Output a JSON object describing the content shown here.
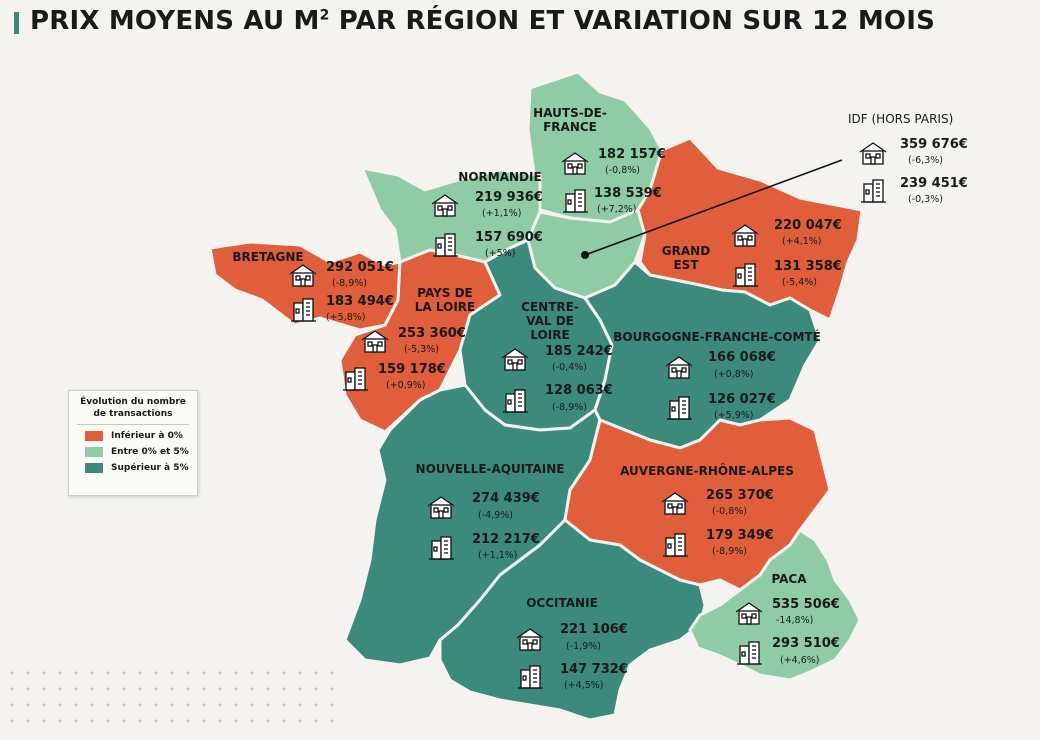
{
  "title_main": "PRIX MOYENS AU M",
  "title_sup": "2",
  "title_rest": " PAR RÉGION ET VARIATION SUR 12 MOIS",
  "colors": {
    "below_0": "#e05e3c",
    "between_0_5": "#8fcba4",
    "above_5": "#3b8a7c"
  },
  "icons": {
    "house": "house-icon",
    "apartment": "apartment-building-icon"
  },
  "legend": {
    "title": "Évolution du nombre de transactions",
    "items": [
      "Inférieur à 0%",
      "Entre 0% et 5%",
      "Supérieur à 5%"
    ]
  },
  "regions": {
    "hdf": {
      "label": "HAUTS-DE-FRANCE",
      "house_price": "182 157€",
      "house_var": "(-0,8%)",
      "apt_price": "138 539€",
      "apt_var": "(+7,2%)",
      "category": "Entre 0% et 5%"
    },
    "norm": {
      "label": "NORMANDIE",
      "house_price": "219 936€",
      "house_var": "(+1,1%)",
      "apt_price": "157 690€",
      "apt_var": "(+5%)",
      "category": "Entre 0% et 5%"
    },
    "idf": {
      "label": "IDF (HORS PARIS)",
      "house_price": "359 676€",
      "house_var": "(-6,3%)",
      "apt_price": "239 451€",
      "apt_var": "(-0,3%)",
      "category": "Entre 0% et 5%"
    },
    "ge": {
      "label": "GRAND EST",
      "house_price": "220 047€",
      "house_var": "(+4,1%)",
      "apt_price": "131 358€",
      "apt_var": "(-5,4%)",
      "category": "Inférieur à 0%"
    },
    "bret": {
      "label": "BRETAGNE",
      "house_price": "292 051€",
      "house_var": "(-8,9%)",
      "apt_price": "183 494€",
      "apt_var": "(+5,8%)",
      "category": "Inférieur à 0%"
    },
    "pdl": {
      "label": "PAYS DE LA LOIRE",
      "house_price": "253 360€",
      "house_var": "(-5,3%)",
      "apt_price": "159 178€",
      "apt_var": "(+0,9%)",
      "category": "Inférieur à 0%"
    },
    "cvl": {
      "label": "CENTRE-VAL DE LOIRE",
      "house_price": "185 242€",
      "house_var": "(-0,4%)",
      "apt_price": "128 063€",
      "apt_var": "(-8,9%)",
      "category": "Supérieur à 5%"
    },
    "bfc": {
      "label": "BOURGOGNE-FRANCHE-COMTÉ",
      "house_price": "166 068€",
      "house_var": "(+0,8%)",
      "apt_price": "126 027€",
      "apt_var": "(+5,9%)",
      "category": "Supérieur à 5%"
    },
    "na": {
      "label": "NOUVELLE-AQUITAINE",
      "house_price": "274 439€",
      "house_var": "(-4,9%)",
      "apt_price": "212 217€",
      "apt_var": "(+1,1%)",
      "category": "Supérieur à 5%"
    },
    "ara": {
      "label": "AUVERGNE-RHÔNE-ALPES",
      "house_price": "265 370€",
      "house_var": "(-0,8%)",
      "apt_price": "179 349€",
      "apt_var": "(-8,9%)",
      "category": "Inférieur à 0%"
    },
    "occ": {
      "label": "OCCITANIE",
      "house_price": "221 106€",
      "house_var": "(-1,9%)",
      "apt_price": "147 732€",
      "apt_var": "(+4,5%)",
      "category": "Supérieur à 5%"
    },
    "paca": {
      "label": "PACA",
      "house_price": "535 506€",
      "house_var": "-14,8%)",
      "apt_price": "293 510€",
      "apt_var": "(+4,6%)",
      "category": "Entre 0% et 5%"
    }
  }
}
